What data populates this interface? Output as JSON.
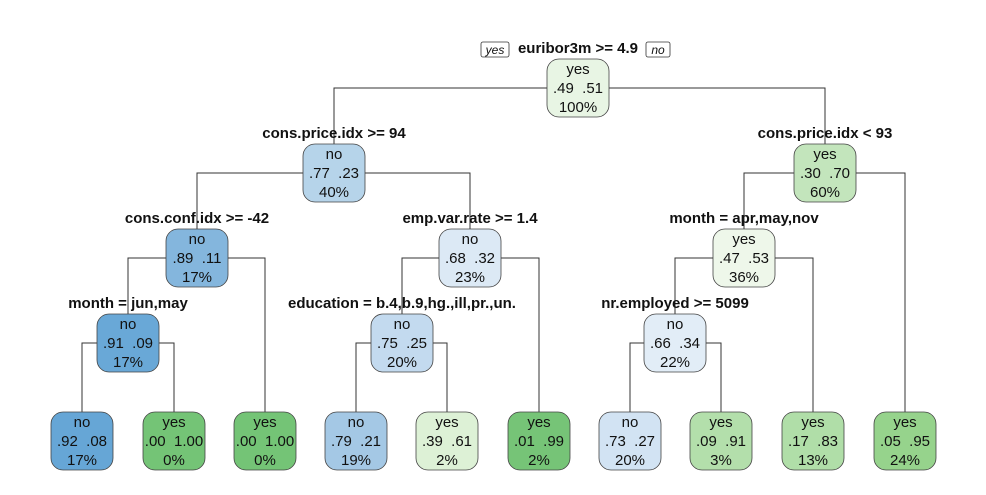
{
  "root_labels": {
    "yes": "yes",
    "no": "no"
  },
  "nodes": [
    {
      "id": "n1",
      "cls": "yes",
      "p": ".49  .51",
      "pct": "100%",
      "split": "euribor3m >= 4.9",
      "fill": "#e8f5e4"
    },
    {
      "id": "n2",
      "cls": "no",
      "p": ".77  .23",
      "pct": "40%",
      "split": "cons.price.idx >= 94",
      "fill": "#b6d4ea"
    },
    {
      "id": "n3",
      "cls": "yes",
      "p": ".30  .70",
      "pct": "60%",
      "split": "cons.price.idx < 93",
      "fill": "#c3e5bc"
    },
    {
      "id": "n4",
      "cls": "no",
      "p": ".89  .11",
      "pct": "17%",
      "split": "cons.conf.idx >= -42",
      "fill": "#84b6dd"
    },
    {
      "id": "n5",
      "cls": "no",
      "p": ".68  .32",
      "pct": "23%",
      "split": "emp.var.rate >= 1.4",
      "fill": "#dce9f5"
    },
    {
      "id": "n6",
      "cls": "yes",
      "p": ".47  .53",
      "pct": "36%",
      "split": "month = apr,may,nov",
      "fill": "#eef7ea"
    },
    {
      "id": "n7",
      "cls": "no",
      "p": ".91  .09",
      "pct": "17%",
      "split": "month = jun,may",
      "fill": "#69a8d7"
    },
    {
      "id": "n8",
      "cls": "no",
      "p": ".75  .25",
      "pct": "20%",
      "split": "education = b.4,b.9,hg.,ill,pr.,un.",
      "fill": "#c3daef"
    },
    {
      "id": "n9",
      "cls": "no",
      "p": ".66  .34",
      "pct": "22%",
      "split": "nr.employed >= 5099",
      "fill": "#e2edf7"
    },
    {
      "id": "l1",
      "cls": "no",
      "p": ".92  .08",
      "pct": "17%",
      "split": "",
      "fill": "#66a6d6"
    },
    {
      "id": "l2",
      "cls": "yes",
      "p": ".00  1.00",
      "pct": "0%",
      "split": "",
      "fill": "#74c476"
    },
    {
      "id": "l3",
      "cls": "yes",
      "p": ".00  1.00",
      "pct": "0%",
      "split": "",
      "fill": "#74c476"
    },
    {
      "id": "l4",
      "cls": "no",
      "p": ".79  .21",
      "pct": "19%",
      "split": "",
      "fill": "#a4c8e5"
    },
    {
      "id": "l5",
      "cls": "yes",
      "p": ".39  .61",
      "pct": "2%",
      "split": "",
      "fill": "#ddf1d6"
    },
    {
      "id": "l6",
      "cls": "yes",
      "p": ".01  .99",
      "pct": "2%",
      "split": "",
      "fill": "#76c477"
    },
    {
      "id": "l7",
      "cls": "no",
      "p": ".73  .27",
      "pct": "20%",
      "split": "",
      "fill": "#d2e3f3"
    },
    {
      "id": "l8",
      "cls": "yes",
      "p": ".09  .91",
      "pct": "3%",
      "split": "",
      "fill": "#b3dfab"
    },
    {
      "id": "l9",
      "cls": "yes",
      "p": ".17  .83",
      "pct": "13%",
      "split": "",
      "fill": "#b0dea8"
    },
    {
      "id": "l10",
      "cls": "yes",
      "p": ".05  .95",
      "pct": "24%",
      "split": "",
      "fill": "#96d38c"
    }
  ]
}
